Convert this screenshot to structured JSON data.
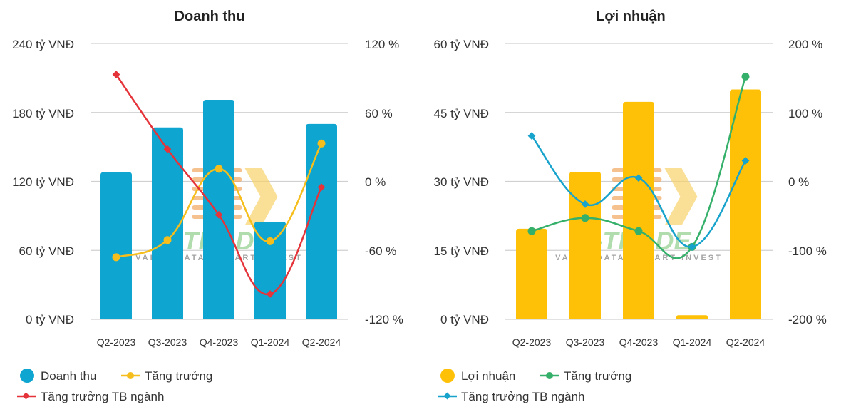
{
  "colors": {
    "revenue_bar": "#0ea5d0",
    "revenue_growth": "#f5be1c",
    "revenue_industry": "#e5333a",
    "profit_bar": "#ffc107",
    "profit_growth": "#35b06a",
    "profit_industry": "#17a3cc",
    "grid": "#d0d0d0"
  },
  "chart_data": [
    {
      "type": "bar",
      "title": "Doanh thu",
      "categories": [
        "Q2-2023",
        "Q3-2023",
        "Q4-2023",
        "Q1-2024",
        "Q2-2024"
      ],
      "y_left": {
        "ticks": [
          "0 tỷ VNĐ",
          "60 tỷ VNĐ",
          "120 tỷ VNĐ",
          "180 tỷ VNĐ",
          "240 tỷ VNĐ"
        ],
        "range": [
          0,
          240
        ]
      },
      "y_right": {
        "ticks": [
          "-120 %",
          "-60 %",
          "0 %",
          "60 %",
          "120 %"
        ],
        "range": [
          -120,
          120
        ]
      },
      "grid": true,
      "legend_position": "bottom-left",
      "series": [
        {
          "name": "Doanh thu",
          "kind": "bar",
          "axis": "left",
          "values": [
            128,
            167,
            191,
            85,
            170
          ]
        },
        {
          "name": "Tăng trưởng",
          "kind": "line",
          "marker": "circle",
          "axis": "right",
          "values": [
            -66,
            -51,
            11,
            -52,
            33
          ]
        },
        {
          "name": "Tăng trưởng TB ngành",
          "kind": "line",
          "marker": "diamond",
          "axis": "right",
          "values": [
            93,
            28,
            -29,
            -98,
            -5
          ]
        }
      ]
    },
    {
      "type": "bar",
      "title": "Lợi nhuận",
      "categories": [
        "Q2-2023",
        "Q3-2023",
        "Q4-2023",
        "Q1-2024",
        "Q2-2024"
      ],
      "y_left": {
        "ticks": [
          "0 tỷ VNĐ",
          "15 tỷ VNĐ",
          "30 tỷ VNĐ",
          "45 tỷ VNĐ",
          "60 tỷ VNĐ"
        ],
        "range": [
          0,
          60
        ]
      },
      "y_right": {
        "ticks": [
          "-200 %",
          "-100 %",
          "0 %",
          "100 %",
          "200 %"
        ],
        "range": [
          -200,
          200
        ]
      },
      "grid": true,
      "legend_position": "bottom-left",
      "series": [
        {
          "name": "Lợi nhuận",
          "kind": "bar",
          "axis": "left",
          "values": [
            19.7,
            32.1,
            47.3,
            0.9,
            50
          ]
        },
        {
          "name": "Tăng trưởng",
          "kind": "line",
          "marker": "circle",
          "axis": "right",
          "values": [
            -72,
            -53,
            -72,
            -95,
            152
          ]
        },
        {
          "name": "Tăng trưởng TB ngành",
          "kind": "line",
          "marker": "diamond",
          "axis": "right",
          "values": [
            66,
            -33,
            5,
            -95,
            30
          ]
        }
      ]
    }
  ]
}
